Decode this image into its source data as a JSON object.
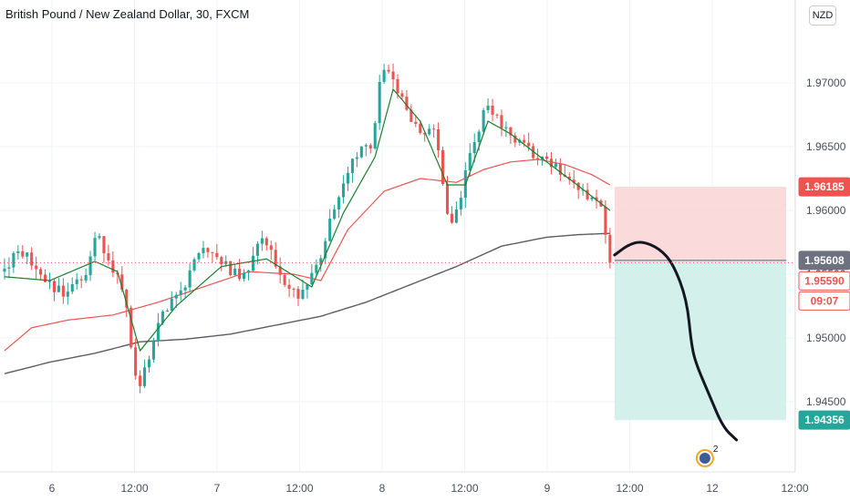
{
  "header": {
    "symbol_title": "British Pound / New Zealand Dollar, 30, FXCM",
    "currency_button": "NZD"
  },
  "badges": {
    "stop": "1.96185",
    "entry": "1.95608",
    "last": "1.95590",
    "countdown": "09:07",
    "target": "1.94356"
  },
  "ideas_marker": {
    "count": "2"
  },
  "colors": {
    "bull": "#26a69a",
    "bear": "#ef5350",
    "ema_fast": "#1a7f2c",
    "ma_mid": "#ef5350",
    "ma_long": "#5d5d5d",
    "stop_zone": "#f9d4d4",
    "target_zone": "#cfeee9",
    "projection": "#131722",
    "axis_text": "#4a4e5a",
    "grid": "#f0f3fa"
  },
  "chart_data": {
    "type": "candlestick",
    "title": "British Pound / New Zealand Dollar, 30, FXCM",
    "price_axis": {
      "ticks": [
        "1.94500",
        "1.95000",
        "1.95500",
        "1.96000",
        "1.96500",
        "1.97000"
      ],
      "range": [
        1.9395,
        1.9765
      ]
    },
    "time_axis": {
      "ticks": [
        "6",
        "12:00",
        "7",
        "12:00",
        "8",
        "12:00",
        "9",
        "12:00",
        "12",
        "12:00"
      ]
    },
    "candle_range": [
      0,
      134
    ],
    "x_range": [
      -1,
      175
    ],
    "ohlc_key_points": [
      [
        0,
        1.9552
      ],
      [
        4,
        1.9569
      ],
      [
        9,
        1.9548
      ],
      [
        13,
        1.9535
      ],
      [
        18,
        1.9548
      ],
      [
        21,
        1.958
      ],
      [
        27,
        1.9538
      ],
      [
        30,
        1.9455
      ],
      [
        35,
        1.9518
      ],
      [
        40,
        1.954
      ],
      [
        44,
        1.9568
      ],
      [
        49,
        1.9558
      ],
      [
        53,
        1.9546
      ],
      [
        58,
        1.958
      ],
      [
        63,
        1.954
      ],
      [
        66,
        1.953
      ],
      [
        70,
        1.956
      ],
      [
        74,
        1.9608
      ],
      [
        78,
        1.9645
      ],
      [
        82,
        1.965
      ],
      [
        84,
        1.9717
      ],
      [
        88,
        1.969
      ],
      [
        92,
        1.966
      ],
      [
        96,
        1.9665
      ],
      [
        98,
        1.9605
      ],
      [
        100,
        1.959
      ],
      [
        104,
        1.965
      ],
      [
        107,
        1.968
      ],
      [
        111,
        1.9665
      ],
      [
        115,
        1.965
      ],
      [
        120,
        1.964
      ],
      [
        124,
        1.963
      ],
      [
        127,
        1.9615
      ],
      [
        131,
        1.9612
      ],
      [
        133,
        1.96
      ],
      [
        134,
        1.9559
      ]
    ],
    "moving_average_fast": [
      [
        0,
        1.9548
      ],
      [
        10,
        1.9545
      ],
      [
        20,
        1.956
      ],
      [
        25,
        1.9552
      ],
      [
        30,
        1.949
      ],
      [
        38,
        1.9525
      ],
      [
        48,
        1.9556
      ],
      [
        58,
        1.9562
      ],
      [
        68,
        1.954
      ],
      [
        75,
        1.9598
      ],
      [
        82,
        1.9642
      ],
      [
        86,
        1.9695
      ],
      [
        92,
        1.967
      ],
      [
        98,
        1.962
      ],
      [
        102,
        1.962
      ],
      [
        107,
        1.967
      ],
      [
        112,
        1.966
      ],
      [
        120,
        1.9638
      ],
      [
        126,
        1.9622
      ],
      [
        134,
        1.96
      ]
    ],
    "moving_average_mid": [
      [
        0,
        1.949
      ],
      [
        6,
        1.9508
      ],
      [
        14,
        1.9514
      ],
      [
        24,
        1.9518
      ],
      [
        34,
        1.9528
      ],
      [
        44,
        1.954
      ],
      [
        54,
        1.9552
      ],
      [
        64,
        1.955
      ],
      [
        70,
        1.9545
      ],
      [
        76,
        1.9585
      ],
      [
        84,
        1.9615
      ],
      [
        92,
        1.9625
      ],
      [
        100,
        1.9622
      ],
      [
        106,
        1.9632
      ],
      [
        112,
        1.9638
      ],
      [
        118,
        1.964
      ],
      [
        124,
        1.9636
      ],
      [
        130,
        1.9628
      ],
      [
        134,
        1.962
      ]
    ],
    "moving_average_long": [
      [
        0,
        1.9472
      ],
      [
        10,
        1.9481
      ],
      [
        20,
        1.9488
      ],
      [
        30,
        1.9497
      ],
      [
        40,
        1.9499
      ],
      [
        50,
        1.9503
      ],
      [
        60,
        1.951
      ],
      [
        70,
        1.9517
      ],
      [
        80,
        1.9528
      ],
      [
        90,
        1.9542
      ],
      [
        100,
        1.9556
      ],
      [
        110,
        1.9572
      ],
      [
        120,
        1.9579
      ],
      [
        127,
        1.9581
      ],
      [
        134,
        1.9582
      ]
    ],
    "position": {
      "entry": 1.95608,
      "stop": 1.96185,
      "target": 1.94356,
      "x_start": 135,
      "x_end": 173
    },
    "last_price": 1.9559,
    "projection_path": [
      [
        135,
        1.9565
      ],
      [
        138,
        1.9573
      ],
      [
        141,
        1.9576
      ],
      [
        145,
        1.957
      ],
      [
        148,
        1.9558
      ],
      [
        151,
        1.953
      ],
      [
        152,
        1.9495
      ],
      [
        153,
        1.948
      ],
      [
        156,
        1.9455
      ],
      [
        159,
        1.943
      ],
      [
        162,
        1.942
      ]
    ]
  }
}
